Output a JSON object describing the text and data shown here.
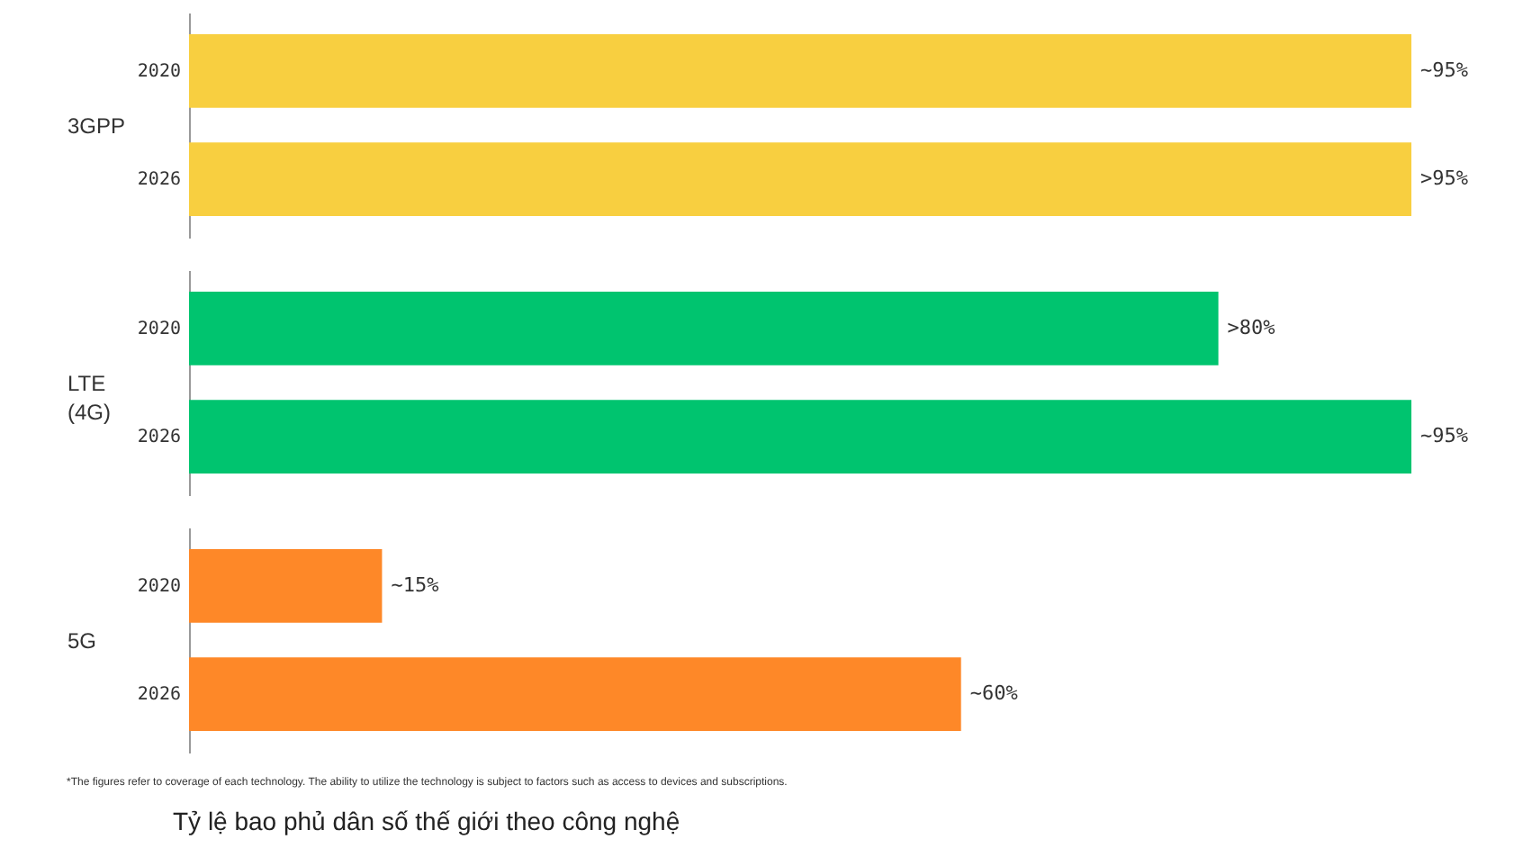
{
  "chart_data": [
    {
      "type": "bar",
      "orientation": "horizontal",
      "ylabel": "3GPP",
      "categories": [
        "2020",
        "2026"
      ],
      "values": [
        95,
        95
      ],
      "value_labels": [
        "~95%",
        ">95%"
      ],
      "color": "#f8cf40",
      "tick_labels": "y"
    },
    {
      "type": "bar",
      "orientation": "horizontal",
      "ylabel": "LTE (4G)",
      "categories": [
        "2020",
        "2026"
      ],
      "values": [
        80,
        95
      ],
      "value_labels": [
        ">80%",
        "~95%"
      ],
      "color": "#00c46f",
      "tick_labels": "y"
    },
    {
      "type": "bar",
      "orientation": "horizontal",
      "ylabel": "5G",
      "categories": [
        "2020",
        "2026"
      ],
      "values": [
        15,
        60
      ],
      "value_labels": [
        "~15%",
        "~60%"
      ],
      "color": "#fe8828",
      "tick_labels": "y",
      "annotations": [
        "*The figures refer to coverage of each technology. The ability to utilize the technology is subject to factors such as access to devices and subscriptions.",
        "Tỷ lệ bao phủ dân số thế giới theo công nghệ"
      ]
    }
  ]
}
